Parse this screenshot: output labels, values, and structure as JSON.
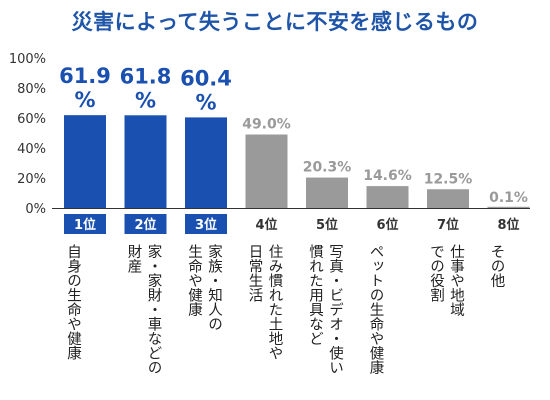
{
  "title": "災害によって失うことに不安を感じるもの",
  "colors": {
    "top": "#1a50b0",
    "other": "#9a9a9a",
    "top_text": "#1a50b0",
    "other_text": "#9a9a9a",
    "axis": "#333333"
  },
  "chart_data": {
    "type": "bar",
    "title": "災害によって失うことに不安を感じるもの",
    "xlabel": "",
    "ylabel": "",
    "ylim": [
      0,
      100
    ],
    "yticks": [
      "0%",
      "20%",
      "40%",
      "60%",
      "80%",
      "100%"
    ],
    "grid": false,
    "bars": [
      {
        "rank": "1位",
        "value": 61.9,
        "label_line1": "61.9",
        "label_line2": "%",
        "category": [
          "自身の生命や健康"
        ],
        "highlight": true
      },
      {
        "rank": "2位",
        "value": 61.8,
        "label_line1": "61.8",
        "label_line2": "%",
        "category": [
          "家・家財・車などの",
          "財産"
        ],
        "highlight": true
      },
      {
        "rank": "3位",
        "value": 60.4,
        "label_line1": "60.4",
        "label_line2": "%",
        "category": [
          "家族・知人の",
          "生命や健康"
        ],
        "highlight": true
      },
      {
        "rank": "4位",
        "value": 49.0,
        "label_line1": "49.0%",
        "category": [
          "住み慣れた土地や",
          "日常生活"
        ],
        "highlight": false
      },
      {
        "rank": "5位",
        "value": 20.3,
        "label_line1": "20.3%",
        "category": [
          "写真・ビデオ・使い",
          "慣れた用具など"
        ],
        "highlight": false
      },
      {
        "rank": "6位",
        "value": 14.6,
        "label_line1": "14.6%",
        "category": [
          "ペットの生命や健康"
        ],
        "highlight": false
      },
      {
        "rank": "7位",
        "value": 12.5,
        "label_line1": "12.5%",
        "category": [
          "仕事や地域",
          "での役割"
        ],
        "highlight": false
      },
      {
        "rank": "8位",
        "value": 0.1,
        "label_line1": "0.1%",
        "category": [
          "その他"
        ],
        "highlight": false
      }
    ]
  }
}
